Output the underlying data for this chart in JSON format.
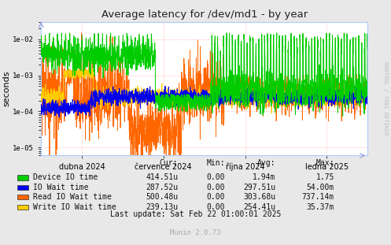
{
  "title": "Average latency for /dev/md1 - by year",
  "ylabel": "seconds",
  "bg_color": "#e8e8e8",
  "plot_bg_color": "#ffffff",
  "grid_color": "#ff9999",
  "ylim": [
    6e-06,
    0.03
  ],
  "yticks": [
    1e-05,
    0.0001,
    0.001,
    0.01
  ],
  "ytick_labels": [
    "1e-05",
    "1e-04",
    "1e-03",
    "1e-02"
  ],
  "xtick_labels": [
    "dubna 2024",
    "července 2024",
    "října 2024",
    "ledna 2025"
  ],
  "legend_entries": [
    {
      "label": "Device IO time",
      "color": "#00cc00",
      "cur": "414.51u",
      "min": "0.00",
      "avg": "1.94m",
      "max": "1.75"
    },
    {
      "label": "IO Wait time",
      "color": "#0000ee",
      "cur": "287.52u",
      "min": "0.00",
      "avg": "297.51u",
      "max": "54.00m"
    },
    {
      "label": "Read IO Wait time",
      "color": "#ff6600",
      "cur": "500.48u",
      "min": "0.00",
      "avg": "303.68u",
      "max": "737.14m"
    },
    {
      "label": "Write IO Wait time",
      "color": "#ffcc00",
      "cur": "239.13u",
      "min": "0.00",
      "avg": "254.41u",
      "max": "35.37m"
    }
  ],
  "last_update": "Last update: Sat Feb 22 01:00:01 2025",
  "munin_version": "Munin 2.0.73",
  "rrdtool_label": "RRDTOOL / TOBI OETIKER"
}
